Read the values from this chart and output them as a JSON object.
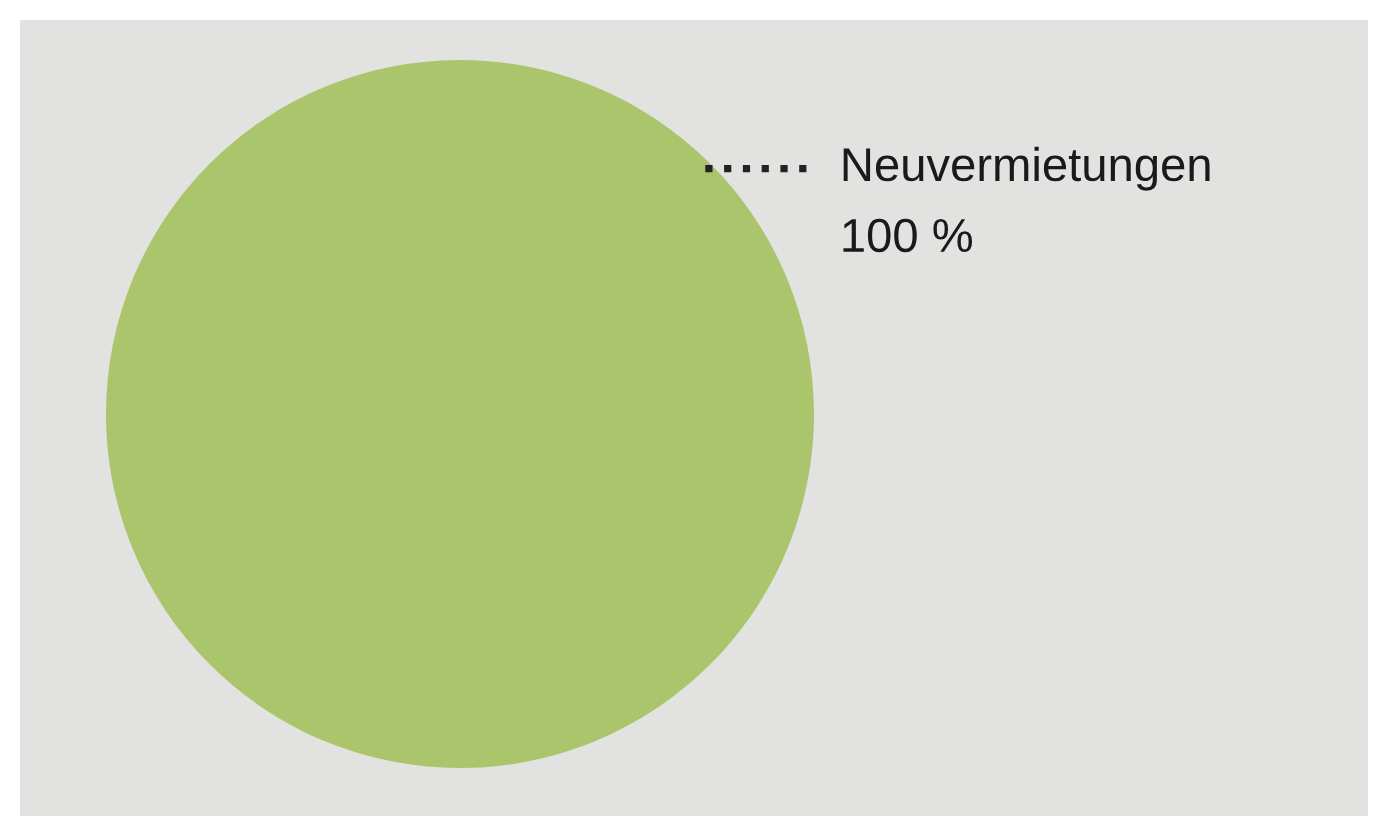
{
  "chart_data": {
    "type": "pie",
    "categories": [
      "Neuvermietungen"
    ],
    "values": [
      100
    ],
    "colors": [
      "#abc56c"
    ],
    "value_labels": [
      "100 %"
    ],
    "legend": false
  }
}
